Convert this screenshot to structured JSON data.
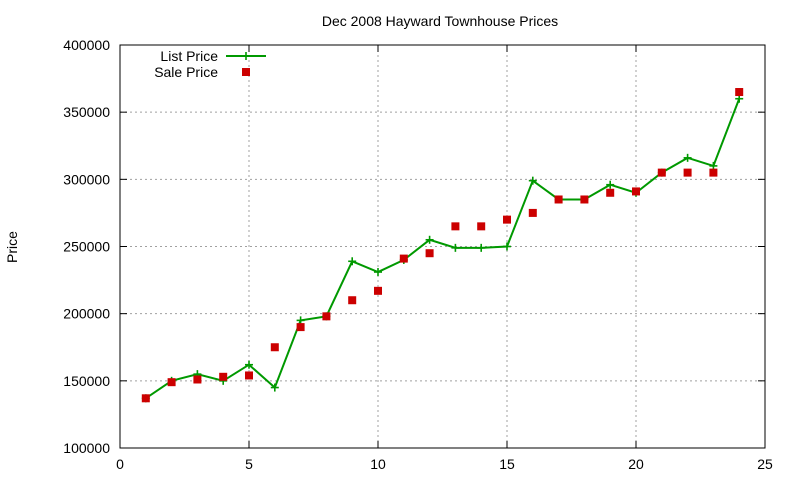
{
  "chart_data": {
    "type": "line",
    "title": "Dec 2008 Hayward Townhouse Prices",
    "xlabel": "",
    "ylabel": "Price",
    "xlim": [
      0,
      25
    ],
    "ylim": [
      100000,
      400000
    ],
    "xticks": [
      0,
      5,
      10,
      15,
      20,
      25
    ],
    "yticks": [
      100000,
      150000,
      200000,
      250000,
      300000,
      350000,
      400000
    ],
    "grid": true,
    "legend_position": "top-left",
    "series": [
      {
        "name": "List Price",
        "style": "linespoints",
        "color": "#009900",
        "x": [
          1,
          2,
          3,
          4,
          5,
          6,
          7,
          8,
          9,
          10,
          11,
          12,
          13,
          14,
          15,
          16,
          17,
          18,
          19,
          20,
          21,
          22,
          23,
          24
        ],
        "y": [
          137000,
          150000,
          155000,
          150000,
          162000,
          145000,
          195000,
          198000,
          239000,
          231000,
          240000,
          255000,
          249000,
          249000,
          250000,
          299000,
          285000,
          285000,
          296000,
          290000,
          305000,
          316000,
          310000,
          360000
        ]
      },
      {
        "name": "Sale Price",
        "style": "points",
        "color": "#cc0000",
        "x": [
          1,
          2,
          3,
          4,
          5,
          6,
          7,
          8,
          9,
          10,
          11,
          12,
          13,
          14,
          15,
          16,
          17,
          18,
          19,
          20,
          21,
          22,
          23,
          24
        ],
        "y": [
          137000,
          149000,
          151000,
          153000,
          154000,
          175000,
          190000,
          198000,
          210000,
          217000,
          241000,
          245000,
          265000,
          265000,
          270000,
          275000,
          285000,
          285000,
          290000,
          291000,
          305000,
          305000,
          305000,
          365000
        ]
      }
    ]
  }
}
